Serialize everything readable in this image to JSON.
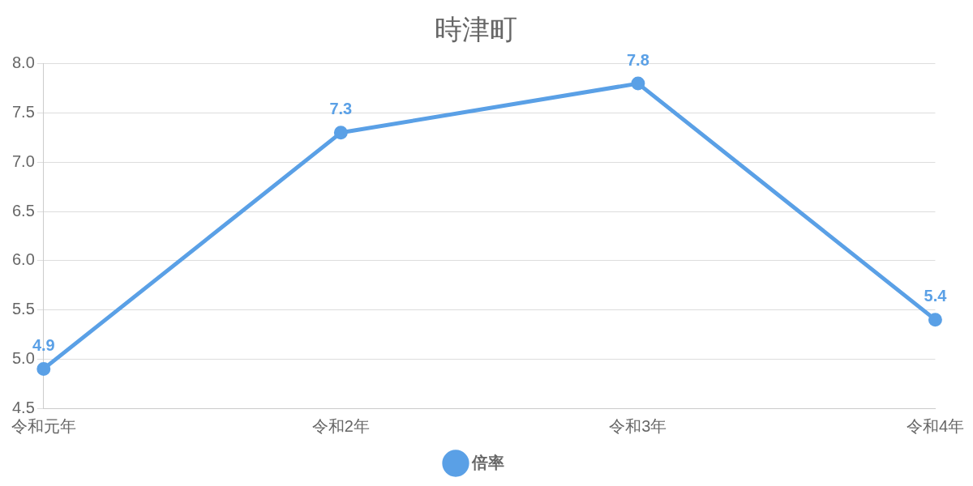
{
  "chart_data": {
    "type": "line",
    "title": "時津町",
    "categories": [
      "令和元年",
      "令和2年",
      "令和3年",
      "令和4年"
    ],
    "series": [
      {
        "name": "倍率",
        "color": "#5aa0e6",
        "values": [
          4.9,
          7.3,
          7.8,
          5.4
        ]
      }
    ],
    "ylim": [
      4.5,
      8.0
    ],
    "yticks": [
      {
        "value": 4.5,
        "label": "4.5"
      },
      {
        "value": 5,
        "label": "5.0"
      },
      {
        "value": 5.5,
        "label": "5.5"
      },
      {
        "value": 6,
        "label": "6.0"
      },
      {
        "value": 6.5,
        "label": "6.5"
      },
      {
        "value": 7,
        "label": "7.0"
      },
      {
        "value": 7.5,
        "label": "7.5"
      },
      {
        "value": 8,
        "label": "8.0"
      }
    ],
    "grid": "y",
    "legend": "bottom",
    "marker": "circle",
    "line_style": "solid",
    "data_labels": true
  }
}
